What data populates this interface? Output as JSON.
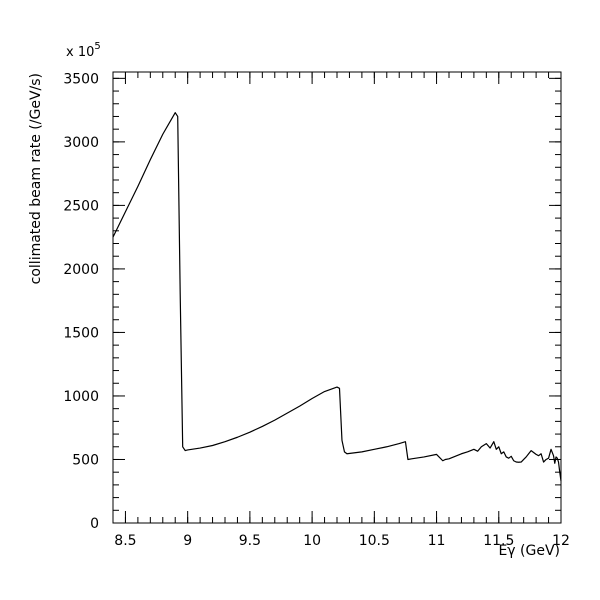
{
  "chart_data": {
    "type": "line",
    "title": "",
    "xlabel": "Eγ (GeV)",
    "ylabel": "collimated beam rate (/GeV/s)",
    "y_multiplier_label": "x 10",
    "y_multiplier_exponent": "5",
    "xlim": [
      8.4,
      12.0
    ],
    "ylim": [
      0,
      3550
    ],
    "x_major_ticks": [
      8.5,
      9,
      9.5,
      10,
      10.5,
      11,
      11.5,
      12
    ],
    "x_tick_labels": [
      "8.5",
      "9",
      "9.5",
      "10",
      "10.5",
      "11",
      "11.5",
      "12"
    ],
    "x_minor_step": 0.1,
    "y_major_ticks": [
      0,
      500,
      1000,
      1500,
      2000,
      2500,
      3000,
      3500
    ],
    "y_tick_labels": [
      "0",
      "500",
      "1000",
      "1500",
      "2000",
      "2500",
      "3000",
      "3500"
    ],
    "y_minor_step": 100,
    "grid": false,
    "legend": "none",
    "series": [
      {
        "x": [
          8.4,
          8.5,
          8.6,
          8.7,
          8.8,
          8.9,
          8.92,
          8.94,
          8.96,
          8.98,
          9.0,
          9.1,
          9.2,
          9.3,
          9.4,
          9.5,
          9.6,
          9.7,
          9.8,
          9.9,
          10.0,
          10.1,
          10.2,
          10.22,
          10.24,
          10.26,
          10.28,
          10.4,
          10.5,
          10.6,
          10.7,
          10.75,
          10.77,
          10.8,
          10.9,
          11.0,
          11.05,
          11.07,
          11.1,
          11.15,
          11.2,
          11.25,
          11.3,
          11.33,
          11.36,
          11.4,
          11.43,
          11.46,
          11.48,
          11.5,
          11.52,
          11.54,
          11.56,
          11.58,
          11.6,
          11.62,
          11.64,
          11.66,
          11.68,
          11.7,
          11.72,
          11.74,
          11.76,
          11.78,
          11.8,
          11.82,
          11.84,
          11.86,
          11.88,
          11.9,
          11.92,
          11.94,
          11.95,
          11.96,
          11.97,
          11.98,
          11.99,
          12.0
        ],
        "y": [
          2250,
          2450,
          2650,
          2860,
          3060,
          3230,
          3200,
          1800,
          600,
          570,
          575,
          590,
          610,
          640,
          675,
          715,
          760,
          810,
          865,
          920,
          980,
          1035,
          1070,
          1060,
          650,
          560,
          545,
          560,
          580,
          600,
          625,
          640,
          500,
          505,
          520,
          540,
          490,
          500,
          505,
          525,
          545,
          560,
          580,
          565,
          600,
          625,
          590,
          640,
          580,
          600,
          545,
          560,
          520,
          510,
          525,
          490,
          480,
          478,
          480,
          500,
          520,
          545,
          570,
          555,
          540,
          530,
          545,
          480,
          500,
          510,
          580,
          530,
          470,
          520,
          510,
          480,
          400,
          330
        ]
      }
    ]
  }
}
